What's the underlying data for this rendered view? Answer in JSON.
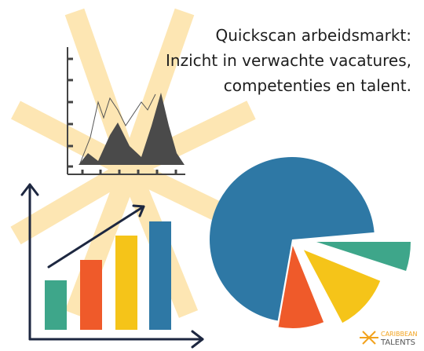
{
  "header": {
    "lines": [
      "Quickscan arbeidsmarkt:",
      "Inzicht in verwachte vacatures,",
      "competenties en talent."
    ]
  },
  "logo": {
    "line1": "CARIBBEAN",
    "line2": "TALENTS"
  }
}
